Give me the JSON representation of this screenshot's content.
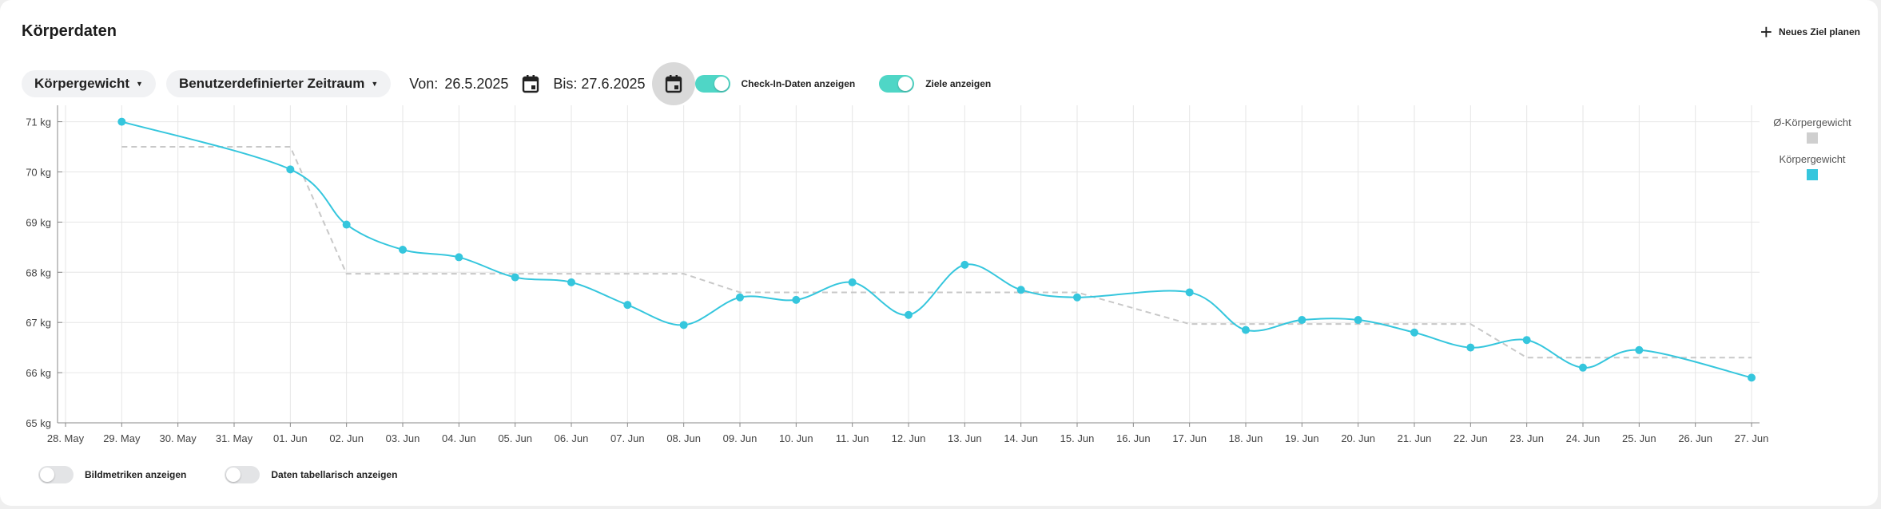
{
  "header": {
    "title": "Körperdaten",
    "new_goal_label": "Neues Ziel planen"
  },
  "filters": {
    "metric_label": "Körpergewicht",
    "range_label": "Benutzerdefinierter Zeitraum",
    "from_label": "Von:",
    "from_value": "26.5.2025",
    "to_label": "Bis:",
    "to_value": "27.6.2025",
    "checkin_label": "Check-In-Daten anzeigen",
    "goals_label": "Ziele anzeigen"
  },
  "footer": {
    "image_metrics_label": "Bildmetriken anzeigen",
    "table_label": "Daten tabellarisch anzeigen"
  },
  "chart_data": {
    "type": "line",
    "x_ticks": [
      "28. May",
      "29. May",
      "30. May",
      "31. May",
      "01. Jun",
      "02. Jun",
      "03. Jun",
      "04. Jun",
      "05. Jun",
      "06. Jun",
      "07. Jun",
      "08. Jun",
      "09. Jun",
      "10. Jun",
      "11. Jun",
      "12. Jun",
      "13. Jun",
      "14. Jun",
      "15. Jun",
      "16. Jun",
      "17. Jun",
      "18. Jun",
      "19. Jun",
      "20. Jun",
      "21. Jun",
      "22. Jun",
      "23. Jun",
      "24. Jun",
      "25. Jun",
      "26. Jun",
      "27. Jun"
    ],
    "y_ticks": [
      "65 kg",
      "66 kg",
      "67 kg",
      "68 kg",
      "69 kg",
      "70 kg",
      "71 kg"
    ],
    "ylim": [
      65,
      71.2
    ],
    "grid": true,
    "legend_position": "right",
    "series": [
      {
        "name": "Ø-Körpergewicht",
        "color": "#c8c8c8",
        "style": "dashed",
        "x": [
          "29. May",
          "01. Jun",
          "02. Jun",
          "08. Jun",
          "09. Jun",
          "15. Jun",
          "17. Jun",
          "22. Jun",
          "23. Jun",
          "27. Jun"
        ],
        "values": [
          70.5,
          70.5,
          67.97,
          67.97,
          67.6,
          67.6,
          66.97,
          66.97,
          66.3,
          66.3
        ]
      },
      {
        "name": "Körpergewicht",
        "color": "#35c6dd",
        "style": "solid",
        "x": [
          "29. May",
          "01. Jun",
          "02. Jun",
          "03. Jun",
          "04. Jun",
          "05. Jun",
          "06. Jun",
          "07. Jun",
          "08. Jun",
          "09. Jun",
          "10. Jun",
          "11. Jun",
          "12. Jun",
          "13. Jun",
          "14. Jun",
          "15. Jun",
          "17. Jun",
          "18. Jun",
          "19. Jun",
          "20. Jun",
          "21. Jun",
          "22. Jun",
          "23. Jun",
          "24. Jun",
          "25. Jun",
          "27. Jun"
        ],
        "values": [
          71.0,
          70.05,
          68.95,
          68.45,
          68.3,
          67.9,
          67.8,
          67.35,
          66.95,
          67.5,
          67.45,
          67.8,
          67.15,
          68.15,
          67.65,
          67.5,
          67.6,
          66.85,
          67.05,
          67.05,
          66.8,
          66.5,
          66.65,
          66.1,
          66.45,
          65.9
        ]
      }
    ]
  }
}
